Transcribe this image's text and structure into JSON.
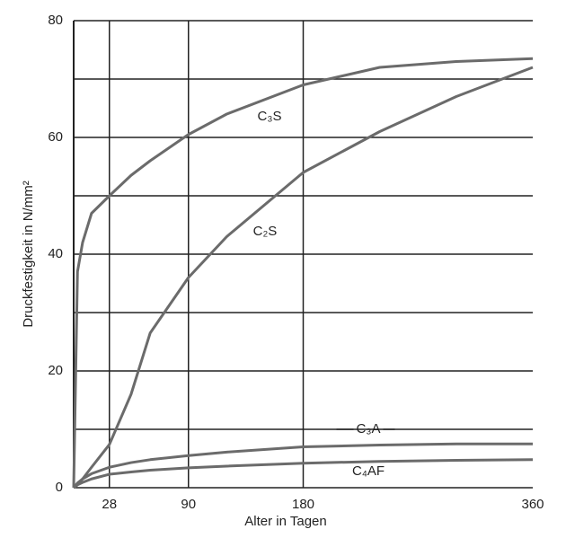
{
  "chart_data": {
    "type": "line",
    "x_label": "Alter in Tagen",
    "y_label": "Druckfestigkeit in N/mm²",
    "x": [
      0,
      3,
      7,
      14,
      28,
      45,
      60,
      90,
      120,
      180,
      240,
      300,
      360
    ],
    "series": [
      {
        "name": "C₃S",
        "color": "#6b6b6b",
        "values": [
          0,
          37,
          42,
          47,
          50,
          53.5,
          56,
          60.5,
          64,
          69,
          72,
          73,
          73.5
        ]
      },
      {
        "name": "C₂S",
        "color": "#6b6b6b",
        "values": [
          0,
          0.5,
          1.5,
          3.5,
          7.4,
          16,
          26.5,
          36,
          43,
          54,
          61,
          67,
          72
        ]
      },
      {
        "name": "C₃A",
        "color": "#6b6b6b",
        "values": [
          0,
          0.8,
          1.5,
          2.4,
          3.5,
          4.3,
          4.8,
          5.5,
          6.1,
          7,
          7.3,
          7.5,
          7.5
        ]
      },
      {
        "name": "C₄AF",
        "color": "#6b6b6b",
        "values": [
          0,
          0.5,
          0.9,
          1.5,
          2.3,
          2.7,
          3,
          3.4,
          3.7,
          4.2,
          4.5,
          4.7,
          4.8
        ]
      }
    ],
    "xlim": [
      0,
      360
    ],
    "xticks": [
      28,
      90,
      180,
      360
    ],
    "ylim": [
      0,
      80
    ],
    "yticks": [
      0,
      20,
      40,
      60,
      80
    ],
    "y_minor_gridlines": [
      10,
      30,
      50,
      70
    ],
    "grid": true
  }
}
